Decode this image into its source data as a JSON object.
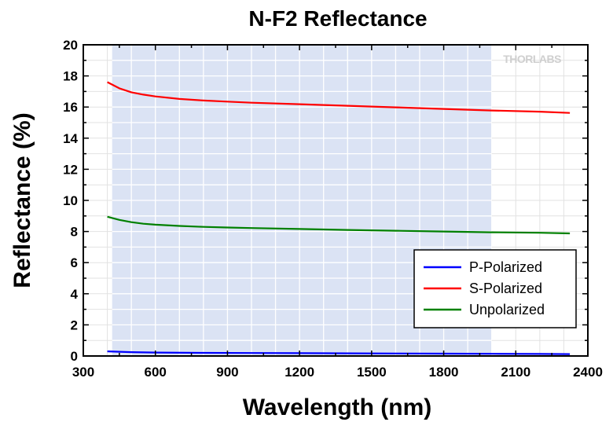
{
  "chart_data": {
    "type": "line",
    "title": "N-F2 Reflectance",
    "xlabel": "Wavelength (nm)",
    "ylabel": "Reflectance (%)",
    "xlim": [
      300,
      2400
    ],
    "ylim": [
      0,
      20
    ],
    "xticks": [
      300,
      600,
      900,
      1200,
      1500,
      1800,
      2100,
      2400
    ],
    "yticks": [
      0,
      2,
      4,
      6,
      8,
      10,
      12,
      14,
      16,
      18,
      20
    ],
    "grid": true,
    "highlight_band": [
      420,
      2000
    ],
    "watermark": "THORLABS",
    "legend_position": "lower-right",
    "series": [
      {
        "name": "P-Polarized",
        "color": "#0000ff",
        "x": [
          400,
          500,
          600,
          800,
          1000,
          1200,
          1400,
          1600,
          1800,
          2000,
          2200,
          2325
        ],
        "y": [
          0.3,
          0.25,
          0.22,
          0.2,
          0.19,
          0.18,
          0.17,
          0.16,
          0.15,
          0.14,
          0.13,
          0.12
        ]
      },
      {
        "name": "S-Polarized",
        "color": "#ff0000",
        "x": [
          400,
          450,
          500,
          550,
          600,
          700,
          800,
          900,
          1000,
          1200,
          1400,
          1600,
          1800,
          2000,
          2200,
          2325
        ],
        "y": [
          17.6,
          17.2,
          16.95,
          16.8,
          16.68,
          16.52,
          16.42,
          16.35,
          16.28,
          16.18,
          16.08,
          15.98,
          15.88,
          15.78,
          15.7,
          15.62
        ]
      },
      {
        "name": "Unpolarized",
        "color": "#008000",
        "x": [
          400,
          450,
          500,
          550,
          600,
          700,
          800,
          900,
          1000,
          1200,
          1400,
          1600,
          1800,
          2000,
          2200,
          2325
        ],
        "y": [
          8.95,
          8.75,
          8.6,
          8.5,
          8.44,
          8.36,
          8.3,
          8.26,
          8.22,
          8.16,
          8.1,
          8.05,
          8.0,
          7.95,
          7.92,
          7.88
        ]
      }
    ]
  }
}
